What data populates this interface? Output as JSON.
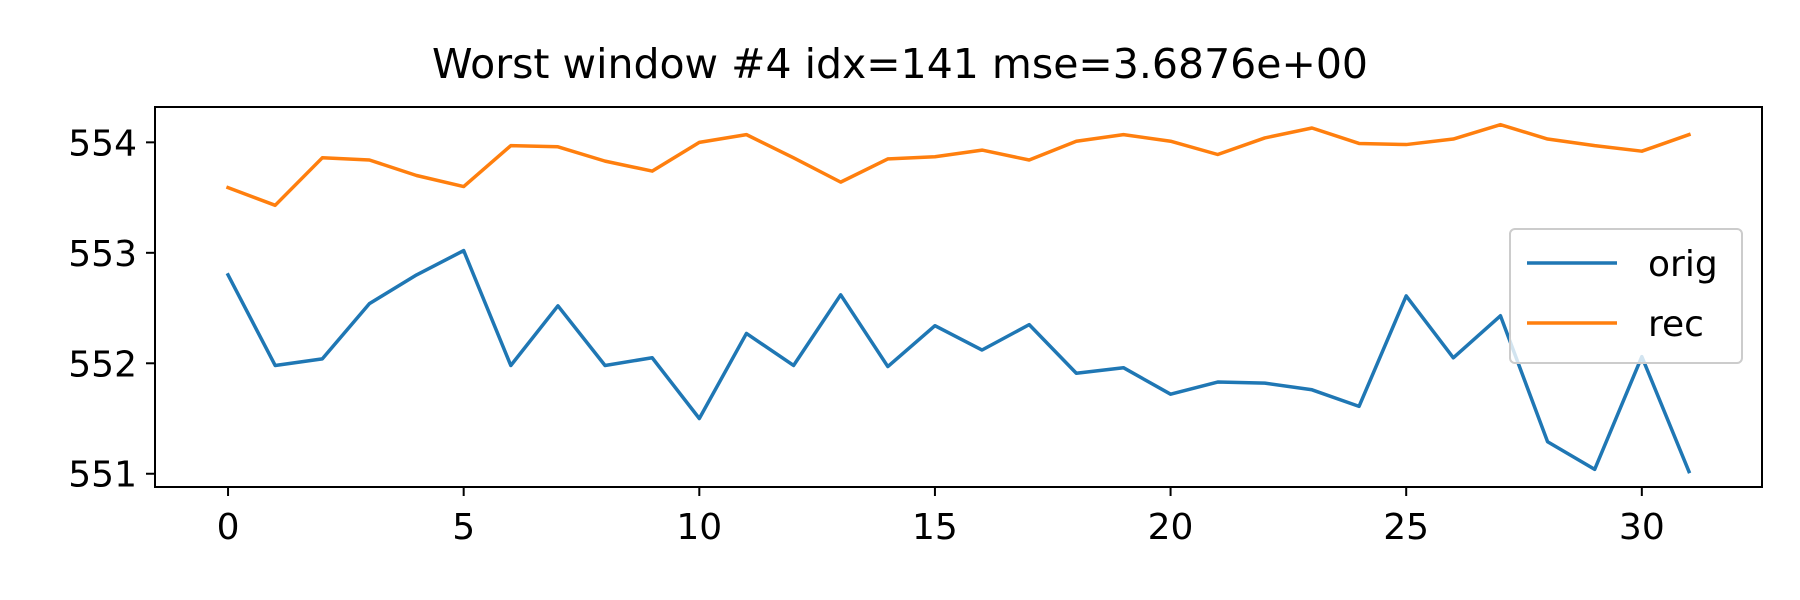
{
  "chart_data": {
    "type": "line",
    "title": "Worst window #4 idx=141 mse=3.6876e+00",
    "xlabel": "",
    "ylabel": "",
    "x": [
      0,
      1,
      2,
      3,
      4,
      5,
      6,
      7,
      8,
      9,
      10,
      11,
      12,
      13,
      14,
      15,
      16,
      17,
      18,
      19,
      20,
      21,
      22,
      23,
      24,
      25,
      26,
      27,
      28,
      29,
      30,
      31
    ],
    "xlim": [
      -1.55,
      32.55
    ],
    "ylim": [
      550.88,
      554.32
    ],
    "xticks": [
      0,
      5,
      10,
      15,
      20,
      25,
      30
    ],
    "yticks": [
      551,
      552,
      553,
      554
    ],
    "xtick_labels": [
      "0",
      "5",
      "10",
      "15",
      "20",
      "25",
      "30"
    ],
    "ytick_labels": [
      "551",
      "552",
      "553",
      "554"
    ],
    "grid": false,
    "legend_position": "center-right",
    "series": [
      {
        "name": "orig",
        "color": "#1f77b4",
        "values": [
          552.8,
          551.98,
          552.04,
          552.54,
          552.8,
          553.02,
          551.98,
          552.52,
          551.98,
          552.05,
          551.5,
          552.27,
          551.98,
          552.62,
          551.97,
          552.34,
          552.12,
          552.35,
          551.91,
          551.96,
          551.72,
          551.83,
          551.82,
          551.76,
          551.61,
          552.61,
          552.05,
          552.43,
          551.29,
          551.04,
          552.06,
          551.02
        ]
      },
      {
        "name": "rec",
        "color": "#ff7f0e",
        "values": [
          553.59,
          553.43,
          553.86,
          553.84,
          553.7,
          553.6,
          553.97,
          553.96,
          553.83,
          553.74,
          554.0,
          554.07,
          553.86,
          553.64,
          553.85,
          553.87,
          553.93,
          553.84,
          554.01,
          554.07,
          554.01,
          553.89,
          554.04,
          554.13,
          553.99,
          553.98,
          554.03,
          554.16,
          554.03,
          553.97,
          553.92,
          554.07
        ]
      }
    ]
  }
}
